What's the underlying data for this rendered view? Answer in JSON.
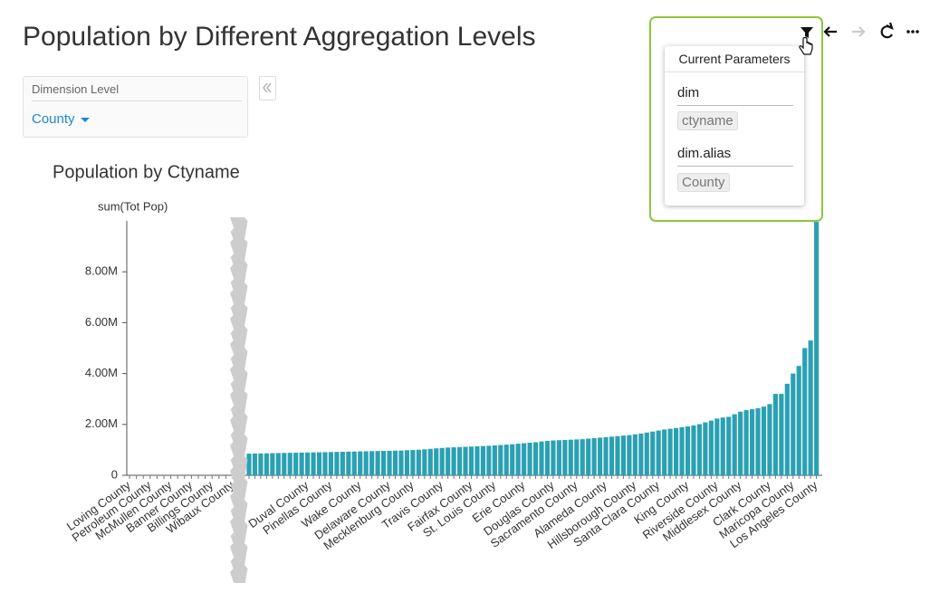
{
  "header": {
    "title": "Population by Different Aggregation Levels"
  },
  "filter": {
    "label": "Dimension Level",
    "value": "County"
  },
  "parameters": {
    "title": "Current Parameters",
    "items": [
      {
        "name": "dim",
        "value": "ctyname"
      },
      {
        "name": "dim.alias",
        "value": "County"
      }
    ]
  },
  "chart_data": {
    "type": "bar",
    "title": "Population by Ctyname",
    "y_label": "sum(Tot Pop)",
    "color": "#2aa1b3",
    "ylim": [
      0,
      10000000
    ],
    "yticks": [
      0,
      {
        "value": 2000000,
        "label": "2.00M"
      },
      {
        "value": 4000000,
        "label": "4.00M"
      },
      {
        "value": 6000000,
        "label": "6.00M"
      },
      {
        "value": 8000000,
        "label": "8.00M"
      }
    ],
    "segments": [
      {
        "categories": [
          "Loving County",
          null,
          null,
          "Petroleum County",
          null,
          null,
          "McMullen County",
          null,
          null,
          "Banner County",
          null,
          null,
          "Billings County",
          null,
          null,
          "Wibaux County"
        ],
        "values": [
          82,
          169,
          286,
          404,
          494,
          587,
          707,
          711,
          762,
          784,
          798,
          845,
          921,
          938,
          1012,
          1053
        ]
      },
      {
        "categories": [
          null,
          null,
          null,
          null,
          null,
          null,
          null,
          null,
          null,
          null,
          "Duval County",
          null,
          null,
          null,
          "Pinellas County",
          null,
          null,
          null,
          null,
          "Wake County",
          null,
          null,
          null,
          null,
          "Delaware County",
          null,
          null,
          null,
          "Mecklenburg County",
          null,
          null,
          null,
          null,
          "Travis County",
          null,
          null,
          null,
          null,
          "Fairfax County",
          null,
          null,
          null,
          "St. Louis County",
          null,
          null,
          null,
          null,
          "Erie County",
          null,
          null,
          null,
          null,
          "Douglas County",
          null,
          null,
          null,
          "Sacramento County",
          null,
          null,
          null,
          null,
          "Alameda County",
          null,
          null,
          null,
          null,
          "Hillsborough County",
          null,
          null,
          null,
          "Santa Clara County",
          null,
          null,
          null,
          null,
          "King County",
          null,
          null,
          null,
          null,
          "Riverside County",
          null,
          null,
          null,
          "Middlesex County",
          null,
          null,
          null,
          null,
          "Clark County",
          null,
          null,
          null,
          "Maricopa County",
          null,
          null,
          null,
          "Los Angeles County"
        ],
        "values": [
          850000,
          855000,
          860000,
          865000,
          870000,
          875000,
          880000,
          884000,
          888000,
          892000,
          896000,
          900000,
          905000,
          910000,
          915000,
          920000,
          925000,
          930000,
          935000,
          940000,
          945000,
          950000,
          955000,
          960000,
          965000,
          970000,
          975000,
          985000,
          995000,
          1005000,
          1020000,
          1040000,
          1060000,
          1075000,
          1090000,
          1100000,
          1110000,
          1120000,
          1130000,
          1140000,
          1150000,
          1160000,
          1175000,
          1190000,
          1205000,
          1220000,
          1240000,
          1260000,
          1280000,
          1300000,
          1330000,
          1350000,
          1370000,
          1380000,
          1390000,
          1400000,
          1410000,
          1420000,
          1440000,
          1460000,
          1480000,
          1500000,
          1520000,
          1540000,
          1560000,
          1580000,
          1610000,
          1640000,
          1680000,
          1720000,
          1760000,
          1800000,
          1830000,
          1860000,
          1890000,
          1920000,
          1960000,
          2010000,
          2080000,
          2150000,
          2230000,
          2270000,
          2300000,
          2400000,
          2500000,
          2560000,
          2600000,
          2640000,
          2700000,
          2800000,
          3200000,
          3200000,
          3600000,
          4000000,
          4300000,
          5000000,
          5300000,
          9960000
        ]
      }
    ]
  }
}
